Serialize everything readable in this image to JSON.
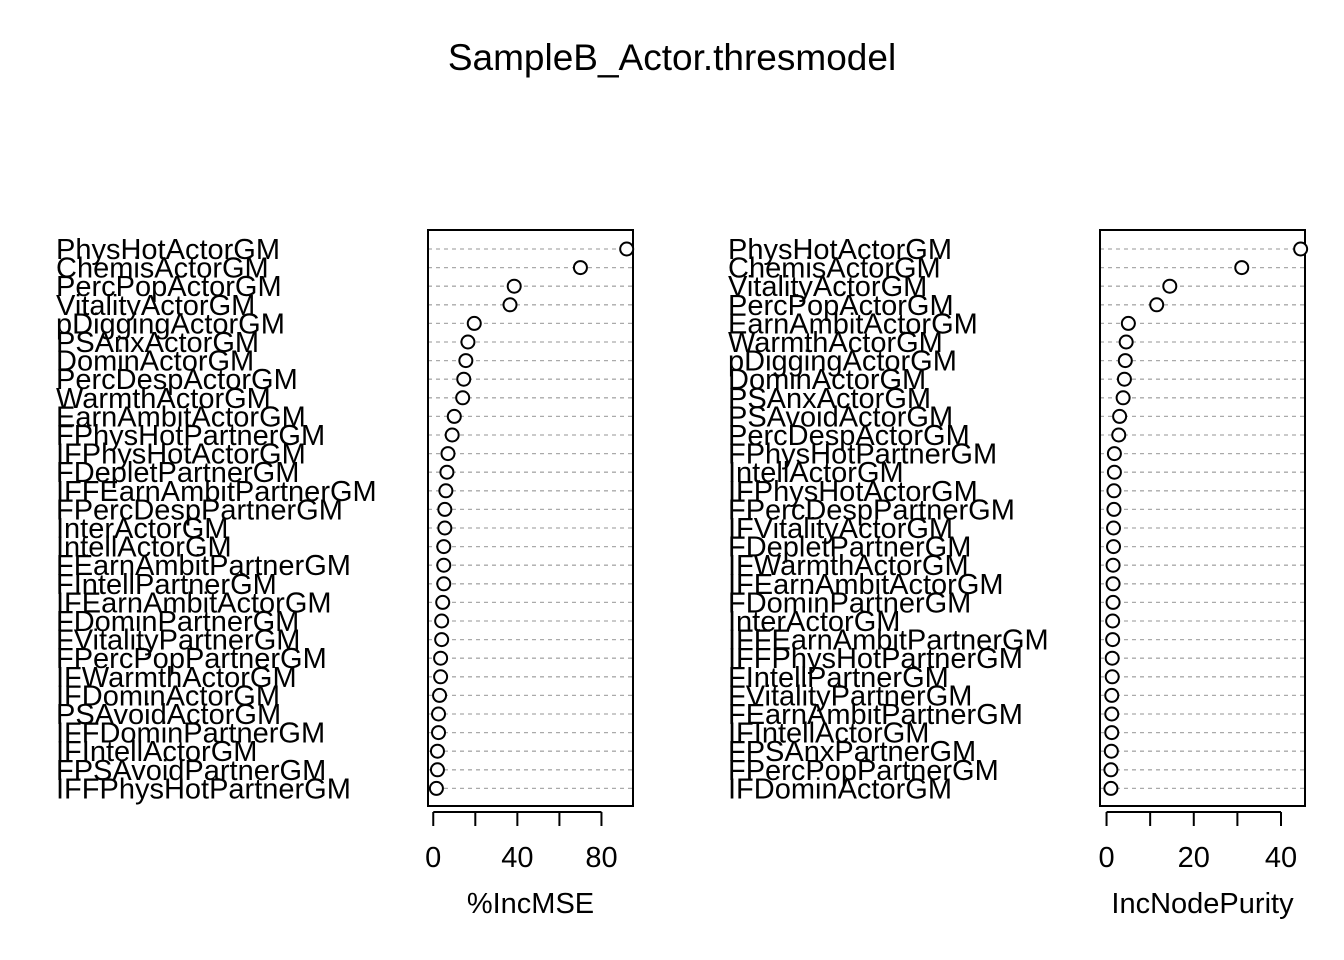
{
  "title": "SampleB_Actor.thresmodel",
  "chart_data": [
    {
      "type": "scatter",
      "xlabel": "%IncMSE",
      "xlim": [
        -2.5,
        95
      ],
      "xticks": [
        0,
        20,
        40,
        60,
        80
      ],
      "xtick_labels": [
        "0",
        "",
        "40",
        "",
        "80"
      ],
      "grid": "horizontal dashed gray guide lines per variable",
      "labels": [
        "PhysHotActorGM",
        "ChemisActorGM",
        "PercPopActorGM",
        "VitalityActorGM",
        "pDiggingActorGM",
        "PSAnxActorGM",
        "DominActorGM",
        "PercDespActorGM",
        "WarmthActorGM",
        "EarnAmbitActorGM",
        "FPhysHotPartnerGM",
        "IFPhysHotActorGM",
        "FDepletPartnerGM",
        "IFFEarnAmbitPartnerGM",
        "FPercDespPartnerGM",
        "InterActorGM",
        "IntellActorGM",
        "FEarnAmbitPartnerGM",
        "FIntellPartnerGM",
        "IFEarnAmbitActorGM",
        "FDominPartnerGM",
        "FVitalityPartnerGM",
        "FPercPopPartnerGM",
        "IFWarmthActorGM",
        "IFDominActorGM",
        "PSAvoidActorGM",
        "IFFDominPartnerGM",
        "IFIntellActorGM",
        "FPSAvoidPartnerGM",
        "IFFPhysHotPartnerGM"
      ],
      "values": [
        92.0,
        70.0,
        38.5,
        36.5,
        19.5,
        16.5,
        15.5,
        14.5,
        14.0,
        10.0,
        9.0,
        7.0,
        6.5,
        6.0,
        5.5,
        5.5,
        5.0,
        5.0,
        5.0,
        4.5,
        4.0,
        4.0,
        3.5,
        3.5,
        3.0,
        2.5,
        2.5,
        2.0,
        2.0,
        1.5
      ]
    },
    {
      "type": "scatter",
      "xlabel": "IncNodePurity",
      "xlim": [
        -1.5,
        45.5
      ],
      "xticks": [
        0,
        10,
        20,
        30,
        40
      ],
      "xtick_labels": [
        "0",
        "",
        "20",
        "",
        "40"
      ],
      "grid": "horizontal dashed gray guide lines per variable",
      "labels": [
        "PhysHotActorGM",
        "ChemisActorGM",
        "VitalityActorGM",
        "PercPopActorGM",
        "EarnAmbitActorGM",
        "WarmthActorGM",
        "pDiggingActorGM",
        "DominActorGM",
        "PSAnxActorGM",
        "PSAvoidActorGM",
        "PercDespActorGM",
        "FPhysHotPartnerGM",
        "IntellActorGM",
        "IFPhysHotActorGM",
        "FPercDespPartnerGM",
        "IFVitalityActorGM",
        "FDepletPartnerGM",
        "IFWarmthActorGM",
        "IFEarnAmbitActorGM",
        "FDominPartnerGM",
        "InterActorGM",
        "IFFEarnAmbitPartnerGM",
        "IFFPhysHotPartnerGM",
        "FIntellPartnerGM",
        "FVitalityPartnerGM",
        "FEarnAmbitPartnerGM",
        "IFIntellActorGM",
        "FPSAnxPartnerGM",
        "FPercPopPartnerGM",
        "IFDominActorGM"
      ],
      "values": [
        44.5,
        31.0,
        14.5,
        11.5,
        5.0,
        4.5,
        4.3,
        4.1,
        3.8,
        3.0,
        2.8,
        1.8,
        1.8,
        1.7,
        1.7,
        1.6,
        1.6,
        1.5,
        1.5,
        1.5,
        1.4,
        1.4,
        1.3,
        1.3,
        1.2,
        1.2,
        1.2,
        1.1,
        1.0,
        1.0
      ]
    }
  ]
}
